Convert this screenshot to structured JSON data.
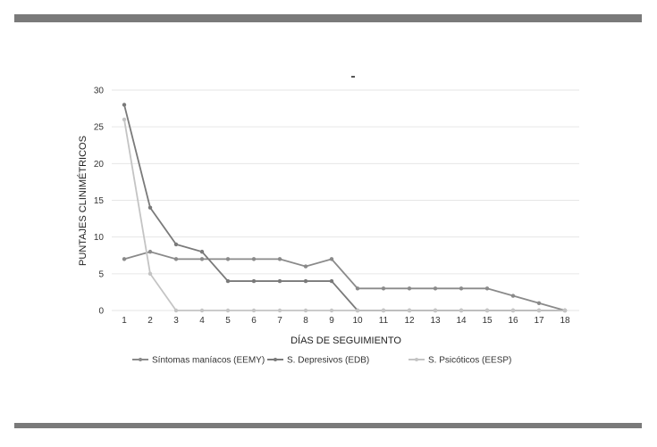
{
  "chart_data": {
    "type": "line",
    "title": "",
    "xlabel": "DÍAS DE SEGUIMIENTO",
    "ylabel": "PUNTAJES CLINIMÉTRICOS",
    "x": [
      1,
      2,
      3,
      4,
      5,
      6,
      7,
      8,
      9,
      10,
      11,
      12,
      13,
      14,
      15,
      16,
      17,
      18
    ],
    "ylim": [
      0,
      30
    ],
    "yticks": [
      0,
      5,
      10,
      15,
      20,
      25,
      30
    ],
    "grid": "horizontal",
    "legend_position": "bottom",
    "series": [
      {
        "name": "Síntomas maníacos (EEMY)",
        "color": "#8a8a8a",
        "values": [
          7,
          8,
          7,
          7,
          7,
          7,
          7,
          6,
          7,
          3,
          3,
          3,
          3,
          3,
          3,
          2,
          1,
          0
        ]
      },
      {
        "name": "S. Depresivos (EDB)",
        "color": "#7a7a7a",
        "values": [
          28,
          14,
          9,
          8,
          4,
          4,
          4,
          4,
          4,
          0,
          0,
          0,
          0,
          0,
          0,
          0,
          0,
          0
        ]
      },
      {
        "name": "S. Psicóticos (EESP)",
        "color": "#c4c4c4",
        "values": [
          26,
          5,
          0,
          0,
          0,
          0,
          0,
          0,
          0,
          0,
          0,
          0,
          0,
          0,
          0,
          0,
          0,
          0
        ]
      }
    ]
  }
}
